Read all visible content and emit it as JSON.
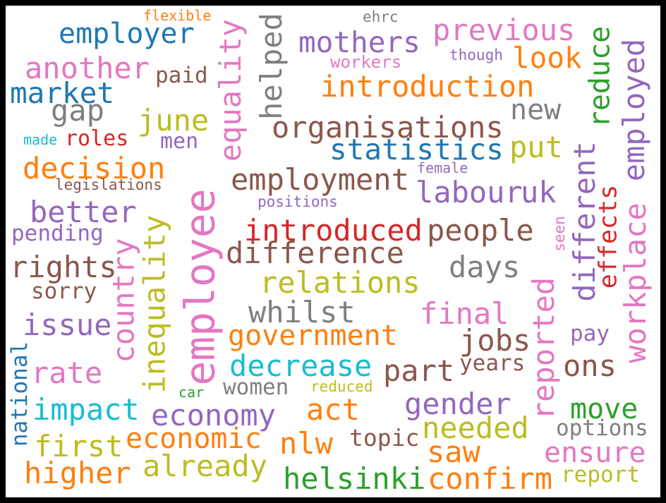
{
  "colors": {
    "blue": "#1f77b4",
    "orange": "#ff7f0e",
    "green": "#2ca02c",
    "red": "#d62728",
    "purple": "#9467bd",
    "brown": "#8c564b",
    "pink": "#e377c2",
    "gray": "#7f7f7f",
    "olive": "#bcbd22",
    "cyan": "#17becf"
  },
  "words": [
    {
      "text": "flexible",
      "color": "orange"
    },
    {
      "text": "employer",
      "color": "blue"
    },
    {
      "text": "equality",
      "color": "pink"
    },
    {
      "text": "helped",
      "color": "gray"
    },
    {
      "text": "ehrc",
      "color": "gray"
    },
    {
      "text": "previous",
      "color": "pink"
    },
    {
      "text": "mothers",
      "color": "purple"
    },
    {
      "text": "workers",
      "color": "pink"
    },
    {
      "text": "though",
      "color": "purple"
    },
    {
      "text": "look",
      "color": "orange"
    },
    {
      "text": "reduce",
      "color": "green"
    },
    {
      "text": "employed",
      "color": "purple"
    },
    {
      "text": "another",
      "color": "pink"
    },
    {
      "text": "paid",
      "color": "brown"
    },
    {
      "text": "introduction",
      "color": "orange"
    },
    {
      "text": "market",
      "color": "blue"
    },
    {
      "text": "gap",
      "color": "gray"
    },
    {
      "text": "new",
      "color": "gray"
    },
    {
      "text": "june",
      "color": "olive"
    },
    {
      "text": "organisations",
      "color": "brown"
    },
    {
      "text": "made",
      "color": "cyan"
    },
    {
      "text": "roles",
      "color": "red"
    },
    {
      "text": "men",
      "color": "purple"
    },
    {
      "text": "statistics",
      "color": "blue"
    },
    {
      "text": "put",
      "color": "olive"
    },
    {
      "text": "different",
      "color": "purple"
    },
    {
      "text": "decision",
      "color": "orange"
    },
    {
      "text": "female",
      "color": "purple"
    },
    {
      "text": "employment",
      "color": "brown"
    },
    {
      "text": "legislations",
      "color": "brown"
    },
    {
      "text": "labour",
      "color": "purple"
    },
    {
      "text": "uk",
      "color": "purple"
    },
    {
      "text": "effects",
      "color": "red"
    },
    {
      "text": "workplace",
      "color": "pink"
    },
    {
      "text": "employee",
      "color": "pink"
    },
    {
      "text": "better",
      "color": "purple"
    },
    {
      "text": "positions",
      "color": "purple"
    },
    {
      "text": "seen",
      "color": "pink"
    },
    {
      "text": "inequality",
      "color": "olive"
    },
    {
      "text": "pending",
      "color": "purple"
    },
    {
      "text": "introduced",
      "color": "red"
    },
    {
      "text": "people",
      "color": "brown"
    },
    {
      "text": "country",
      "color": "pink"
    },
    {
      "text": "difference",
      "color": "brown"
    },
    {
      "text": "rights",
      "color": "brown"
    },
    {
      "text": "days",
      "color": "gray"
    },
    {
      "text": "reported",
      "color": "pink"
    },
    {
      "text": "relations",
      "color": "olive"
    },
    {
      "text": "sorry",
      "color": "brown"
    },
    {
      "text": "whilst",
      "color": "gray"
    },
    {
      "text": "final",
      "color": "pink"
    },
    {
      "text": "issue",
      "color": "purple"
    },
    {
      "text": "government",
      "color": "orange"
    },
    {
      "text": "jobs",
      "color": "brown"
    },
    {
      "text": "pay",
      "color": "purple"
    },
    {
      "text": "national",
      "color": "blue"
    },
    {
      "text": "rate",
      "color": "pink"
    },
    {
      "text": "decrease",
      "color": "cyan"
    },
    {
      "text": "part",
      "color": "brown"
    },
    {
      "text": "years",
      "color": "brown"
    },
    {
      "text": "ons",
      "color": "brown"
    },
    {
      "text": "women",
      "color": "gray"
    },
    {
      "text": "car",
      "color": "green"
    },
    {
      "text": "reduced",
      "color": "olive"
    },
    {
      "text": "impact",
      "color": "cyan"
    },
    {
      "text": "economy",
      "color": "purple"
    },
    {
      "text": "act",
      "color": "orange"
    },
    {
      "text": "gender",
      "color": "purple"
    },
    {
      "text": "move",
      "color": "green"
    },
    {
      "text": "options",
      "color": "gray"
    },
    {
      "text": "needed",
      "color": "olive"
    },
    {
      "text": "first",
      "color": "olive"
    },
    {
      "text": "economic",
      "color": "orange"
    },
    {
      "text": "nlw",
      "color": "orange"
    },
    {
      "text": "topic",
      "color": "brown"
    },
    {
      "text": "saw",
      "color": "orange"
    },
    {
      "text": "ensure",
      "color": "pink"
    },
    {
      "text": "higher",
      "color": "orange"
    },
    {
      "text": "already",
      "color": "olive"
    },
    {
      "text": "helsinki",
      "color": "green"
    },
    {
      "text": "confirm",
      "color": "orange"
    },
    {
      "text": "report",
      "color": "olive"
    }
  ]
}
